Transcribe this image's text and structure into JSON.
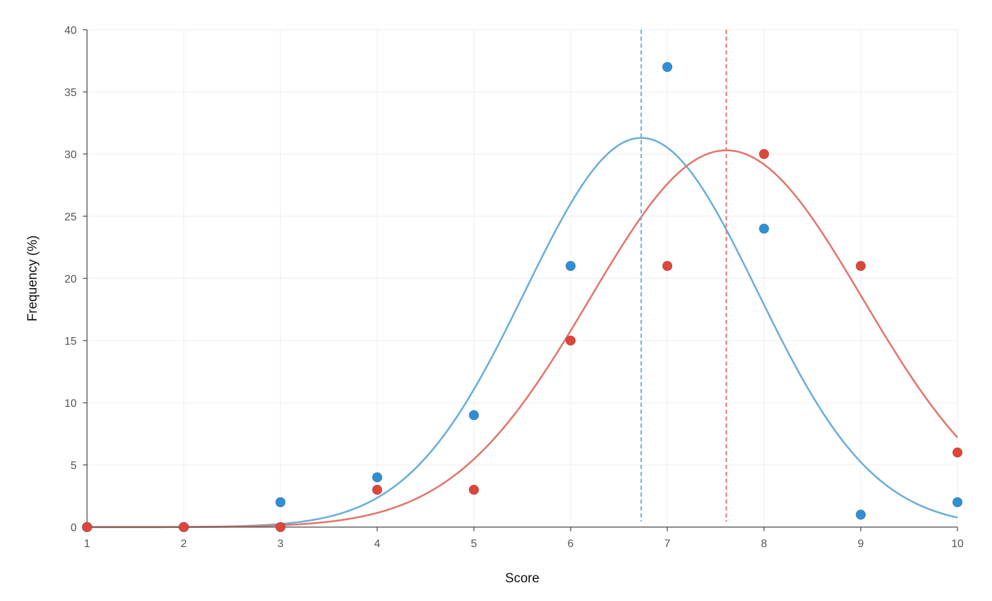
{
  "chart_data": {
    "type": "scatter",
    "xlabel": "Score",
    "ylabel": "Frequency (%)",
    "xlim": [
      1,
      10
    ],
    "ylim": [
      0,
      40
    ],
    "x_ticks": [
      1,
      2,
      3,
      4,
      5,
      6,
      7,
      8,
      9,
      10
    ],
    "y_ticks": [
      0,
      5,
      10,
      15,
      20,
      25,
      30,
      35,
      40
    ],
    "grid": true,
    "x": [
      1,
      2,
      3,
      4,
      5,
      6,
      7,
      8,
      9,
      10
    ],
    "series": [
      {
        "color": "#2f8fd6",
        "curve_color": "#6aaedc",
        "values": [
          0,
          0,
          2,
          4,
          9,
          21,
          37,
          24,
          1,
          2
        ],
        "fit": {
          "type": "normal",
          "mean": 6.73,
          "peak": 31.3,
          "sd": 1.2
        },
        "mean_line": 6.73
      },
      {
        "color": "#e0453a",
        "curve_color": "#e3766c",
        "values": [
          0,
          0,
          0,
          3,
          3,
          15,
          21,
          30,
          21,
          6
        ],
        "fit": {
          "type": "normal",
          "mean": 7.61,
          "peak": 30.3,
          "sd": 1.41
        },
        "mean_line": 7.61
      }
    ]
  }
}
